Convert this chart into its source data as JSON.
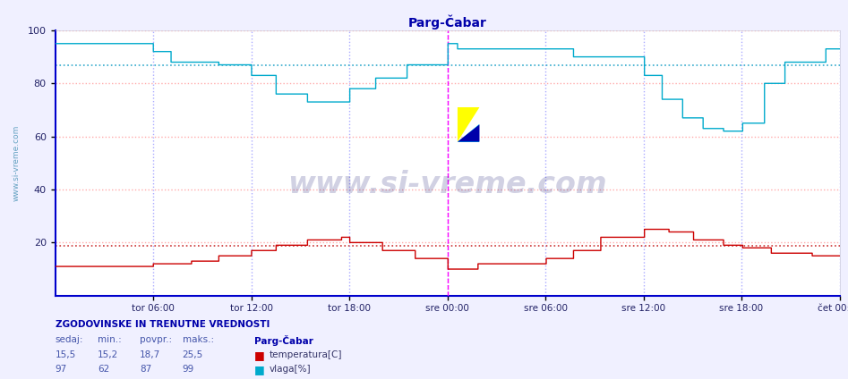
{
  "title": "Parg-Čabar",
  "bg_color": "#f0f0ff",
  "plot_bg_color": "#ffffff",
  "ylim": [
    0,
    100
  ],
  "yticks": [
    20,
    40,
    60,
    80,
    100
  ],
  "grid_h_color": "#ffaaaa",
  "grid_v_color": "#aaaaff",
  "temp_color": "#cc0000",
  "humid_color": "#00aacc",
  "border_left_color": "#0000cc",
  "border_bottom_color": "#0000cc",
  "magenta_line_color": "#ff00ff",
  "avg_temp": 18.7,
  "avg_humid": 87,
  "x_labels": [
    "tor 06:00",
    "tor 12:00",
    "tor 18:00",
    "sre 00:00",
    "sre 06:00",
    "sre 12:00",
    "sre 18:00",
    "čet 00:00"
  ],
  "watermark": "www.si-vreme.com",
  "stats_title": "ZGODOVINSKE IN TRENUTNE VREDNOSTI",
  "stats_headers": [
    "sedaj:",
    "min.:",
    "povpr.:",
    "maks.:",
    "Parg-Čabar"
  ],
  "temp_stats": [
    "15,5",
    "15,2",
    "18,7",
    "25,5"
  ],
  "humid_stats": [
    "97",
    "62",
    "87",
    "99"
  ],
  "temp_label": "temperatura[C]",
  "humid_label": "vlaga[%]"
}
